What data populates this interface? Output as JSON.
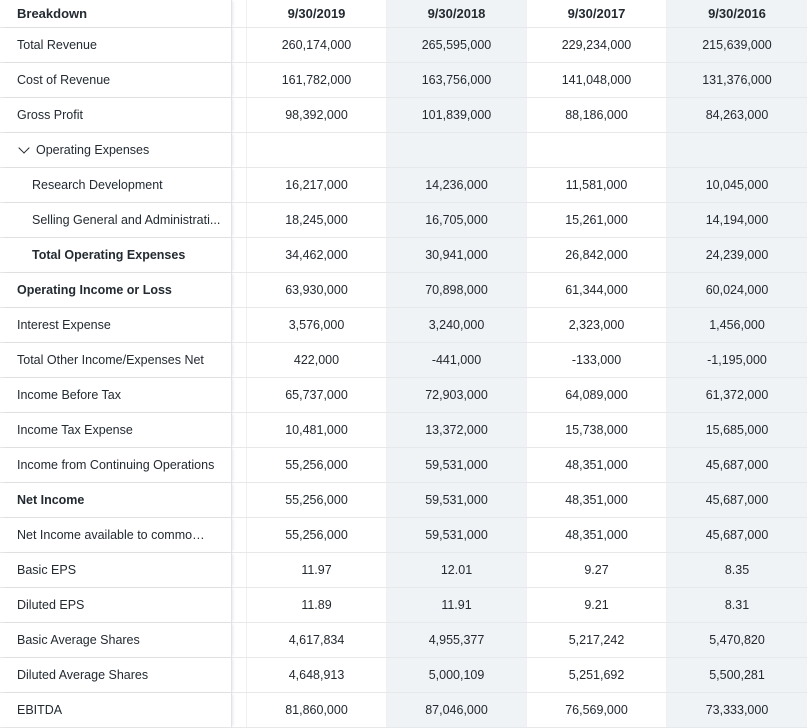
{
  "header": {
    "breakdown_label": "Breakdown",
    "dates": [
      "9/30/2019",
      "9/30/2018",
      "9/30/2017",
      "9/30/2016"
    ]
  },
  "rows": [
    {
      "name": "Total Revenue",
      "values": [
        "260,174,000",
        "265,595,000",
        "229,234,000",
        "215,639,000"
      ]
    },
    {
      "name": "Cost of Revenue",
      "values": [
        "161,782,000",
        "163,756,000",
        "141,048,000",
        "131,376,000"
      ]
    },
    {
      "name": "Gross Profit",
      "values": [
        "98,392,000",
        "101,839,000",
        "88,186,000",
        "84,263,000"
      ]
    },
    {
      "name": "Operating Expenses",
      "values": [
        "",
        "",
        "",
        ""
      ]
    },
    {
      "name": "Research Development",
      "values": [
        "16,217,000",
        "14,236,000",
        "11,581,000",
        "10,045,000"
      ]
    },
    {
      "name": "Selling General and Administrati...",
      "values": [
        "18,245,000",
        "16,705,000",
        "15,261,000",
        "14,194,000"
      ]
    },
    {
      "name": "Total Operating Expenses",
      "values": [
        "34,462,000",
        "30,941,000",
        "26,842,000",
        "24,239,000"
      ]
    },
    {
      "name": "Operating Income or Loss",
      "values": [
        "63,930,000",
        "70,898,000",
        "61,344,000",
        "60,024,000"
      ]
    },
    {
      "name": "Interest Expense",
      "values": [
        "3,576,000",
        "3,240,000",
        "2,323,000",
        "1,456,000"
      ]
    },
    {
      "name": "Total Other Income/Expenses Net",
      "values": [
        "422,000",
        "-441,000",
        "-133,000",
        "-1,195,000"
      ]
    },
    {
      "name": "Income Before Tax",
      "values": [
        "65,737,000",
        "72,903,000",
        "64,089,000",
        "61,372,000"
      ]
    },
    {
      "name": "Income Tax Expense",
      "values": [
        "10,481,000",
        "13,372,000",
        "15,738,000",
        "15,685,000"
      ]
    },
    {
      "name": "Income from Continuing Operations",
      "values": [
        "55,256,000",
        "59,531,000",
        "48,351,000",
        "45,687,000"
      ]
    },
    {
      "name": "Net Income",
      "values": [
        "55,256,000",
        "59,531,000",
        "48,351,000",
        "45,687,000"
      ]
    },
    {
      "name": "Net Income available to common s...",
      "values": [
        "55,256,000",
        "59,531,000",
        "48,351,000",
        "45,687,000"
      ]
    },
    {
      "name": "Basic EPS",
      "values": [
        "11.97",
        "12.01",
        "9.27",
        "8.35"
      ]
    },
    {
      "name": "Diluted EPS",
      "values": [
        "11.89",
        "11.91",
        "9.21",
        "8.31"
      ]
    },
    {
      "name": "Basic Average Shares",
      "values": [
        "4,617,834",
        "4,955,377",
        "5,217,242",
        "5,470,820"
      ]
    },
    {
      "name": "Diluted Average Shares",
      "values": [
        "4,648,913",
        "5,000,109",
        "5,251,692",
        "5,500,281"
      ]
    },
    {
      "name": "EBITDA",
      "values": [
        "81,860,000",
        "87,046,000",
        "76,569,000",
        "73,333,000"
      ]
    }
  ]
}
